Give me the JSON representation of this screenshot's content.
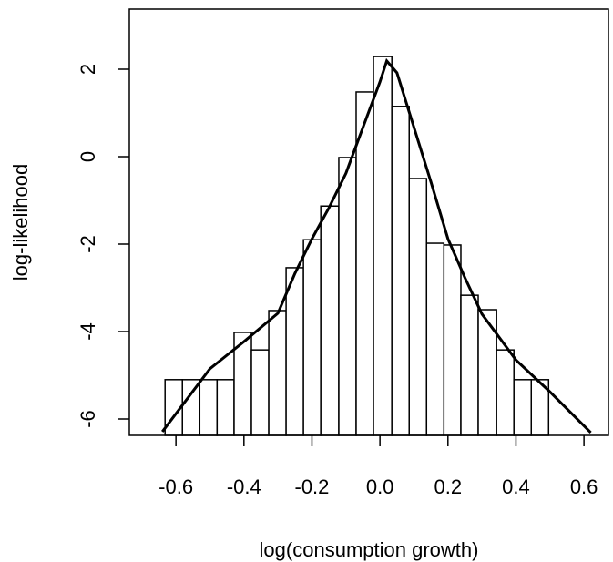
{
  "chart_data": {
    "type": "histogram",
    "xlabel": "log(consumption growth)",
    "ylabel": "log-likelihood",
    "bins": [
      -0.632,
      -0.581,
      -0.53,
      -0.479,
      -0.429,
      -0.378,
      -0.327,
      -0.276,
      -0.225,
      -0.174,
      -0.121,
      -0.07,
      -0.019,
      0.035,
      0.086,
      0.137,
      0.188,
      0.238,
      0.289,
      0.343,
      0.394,
      0.445,
      0.496
    ],
    "values": [
      -5.1,
      -5.1,
      -5.1,
      -5.1,
      -4.02,
      -4.42,
      -3.52,
      -2.54,
      -1.9,
      -1.13,
      -0.02,
      1.48,
      2.29,
      1.15,
      -0.5,
      -1.98,
      -2.02,
      -3.17,
      -3.5,
      -4.42,
      -5.1,
      -5.1
    ],
    "color": "#ffffff",
    "curve": {
      "color": "#000000",
      "x": [
        -0.64,
        -0.5,
        -0.4,
        -0.3,
        -0.25,
        -0.2,
        -0.15,
        -0.1,
        -0.05,
        0.0,
        0.02,
        0.05,
        0.1,
        0.15,
        0.2,
        0.25,
        0.3,
        0.4,
        0.5,
        0.62
      ],
      "y": [
        -6.29,
        -4.85,
        -4.23,
        -3.58,
        -2.67,
        -1.88,
        -1.17,
        -0.38,
        0.67,
        1.71,
        2.19,
        1.92,
        0.67,
        -0.58,
        -1.88,
        -2.77,
        -3.6,
        -4.65,
        -5.38,
        -6.31
      ]
    },
    "xlim": [
      -0.737,
      0.672
    ],
    "ylim": [
      -6.375,
      3.375
    ],
    "xticks": [
      -0.6,
      -0.4,
      -0.2,
      {
        "value": 0,
        "label": "0.0"
      },
      0.2,
      0.4,
      0.6
    ],
    "yticks": [
      -6,
      -4,
      -2,
      0,
      2
    ]
  }
}
